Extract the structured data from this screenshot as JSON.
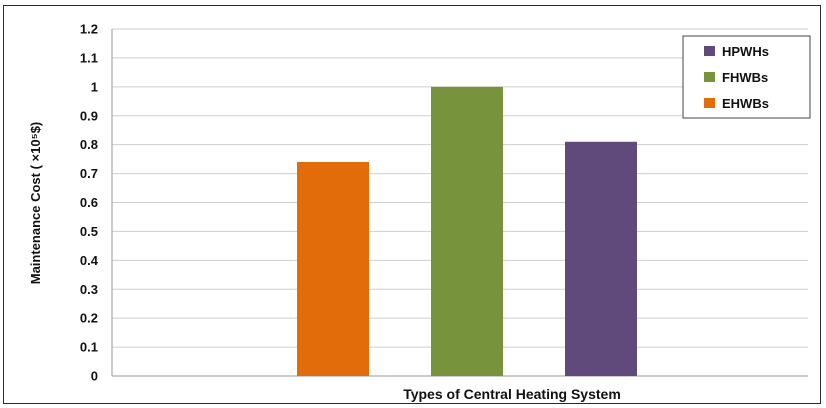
{
  "chart_data": {
    "type": "bar",
    "xlabel": "Types of Central Heating System",
    "ylabel": "Maintenance  Cost ( ×10⁵$)",
    "ylim": [
      0,
      1.2
    ],
    "yticks": [
      "0",
      "0.1",
      "0.2",
      "0.3",
      "0.4",
      "0.5",
      "0.6",
      "0.7",
      "0.8",
      "0.9",
      "1",
      "1.1",
      "1.2"
    ],
    "grid": true,
    "legend_position": "top-right",
    "series": [
      {
        "name": "EHWBs",
        "value": 0.74,
        "color": "#e36c0a"
      },
      {
        "name": "FHWBs",
        "value": 1.0,
        "color": "#77933c"
      },
      {
        "name": "HPWHs",
        "value": 0.81,
        "color": "#604a7b"
      }
    ],
    "legend_order": [
      "HPWHs",
      "FHWBs",
      "EHWBs"
    ]
  }
}
